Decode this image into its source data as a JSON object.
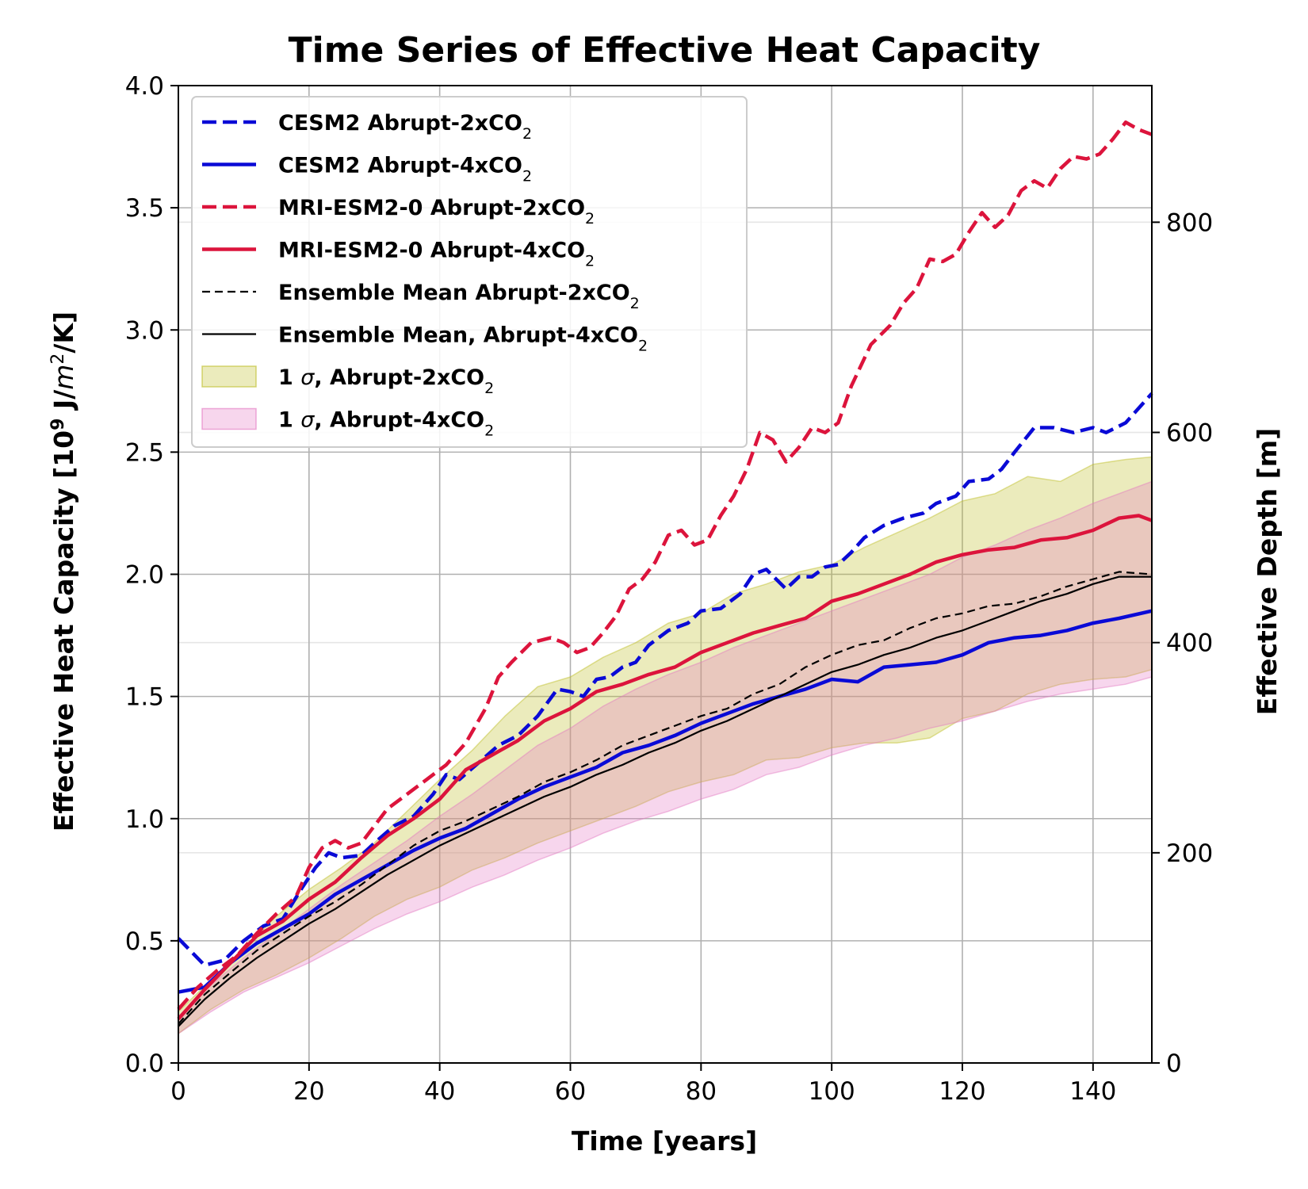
{
  "chart_data": {
    "type": "line",
    "title": "Time Series of Effective Heat Capacity",
    "xlabel": "Time [years]",
    "ylabel_prefix": "Effective Heat Capacity [10",
    "ylabel_exp": "9",
    "ylabel_mid": " J/",
    "ylabel_m": "m",
    "ylabel_exp2": "2",
    "ylabel_suffix": "/K]",
    "y2label": "Effective Depth [m]",
    "xlim": [
      0,
      149
    ],
    "ylim": [
      0,
      4
    ],
    "y2lim": [
      0,
      930
    ],
    "x_ticks": [
      0,
      20,
      40,
      60,
      80,
      100,
      120,
      140
    ],
    "x_tick_labels": [
      "0",
      "20",
      "40",
      "60",
      "80",
      "100",
      "120",
      "140"
    ],
    "y_ticks": [
      0,
      0.5,
      1,
      1.5,
      2,
      2.5,
      3,
      3.5,
      4
    ],
    "y_tick_labels": [
      "0.0",
      "0.5",
      "1.0",
      "1.5",
      "2.0",
      "2.5",
      "3.0",
      "3.5",
      "4.0"
    ],
    "y2_ticks": [
      0,
      200,
      400,
      600,
      800
    ],
    "y2_tick_labels": [
      "0",
      "200",
      "400",
      "600",
      "800"
    ],
    "grid": true,
    "legend_position": "upper-left",
    "series": [
      {
        "id": "cesm2_2x",
        "label_main": "CESM2 Abrupt-2xCO",
        "label_sub": "2",
        "color": "#0a0ad6",
        "style": "dashed",
        "width": 4.5,
        "x": [
          0,
          4,
          7,
          10,
          13,
          16,
          19,
          21,
          23,
          25,
          28,
          30,
          33,
          36,
          39,
          41,
          43,
          46,
          49,
          52,
          55,
          58,
          60,
          62,
          64,
          66,
          68,
          70,
          72,
          75,
          78,
          80,
          83,
          86,
          88,
          90,
          93,
          95,
          97,
          99,
          101,
          103,
          105,
          108,
          111,
          114,
          116,
          119,
          121,
          124,
          126,
          128,
          131,
          134,
          137,
          140,
          142,
          145,
          149
        ],
        "y": [
          0.51,
          0.4,
          0.42,
          0.5,
          0.56,
          0.59,
          0.72,
          0.8,
          0.86,
          0.84,
          0.85,
          0.9,
          0.97,
          1.01,
          1.1,
          1.18,
          1.16,
          1.23,
          1.3,
          1.34,
          1.42,
          1.53,
          1.52,
          1.5,
          1.57,
          1.58,
          1.62,
          1.64,
          1.71,
          1.77,
          1.8,
          1.85,
          1.86,
          1.92,
          2.0,
          2.02,
          1.94,
          1.99,
          1.99,
          2.03,
          2.04,
          2.09,
          2.15,
          2.2,
          2.23,
          2.25,
          2.29,
          2.32,
          2.38,
          2.39,
          2.43,
          2.5,
          2.6,
          2.6,
          2.58,
          2.6,
          2.58,
          2.62,
          2.74
        ]
      },
      {
        "id": "cesm2_4x",
        "label_main": "CESM2 Abrupt-4xCO",
        "label_sub": "2",
        "color": "#0a0ad6",
        "style": "solid",
        "width": 4.5,
        "x": [
          0,
          4,
          8,
          12,
          16,
          20,
          24,
          28,
          32,
          36,
          40,
          44,
          48,
          52,
          56,
          60,
          64,
          68,
          72,
          76,
          80,
          84,
          88,
          92,
          96,
          100,
          104,
          108,
          112,
          116,
          120,
          124,
          128,
          132,
          136,
          140,
          144,
          149
        ],
        "y": [
          0.29,
          0.31,
          0.41,
          0.49,
          0.55,
          0.61,
          0.69,
          0.75,
          0.81,
          0.87,
          0.92,
          0.96,
          1.02,
          1.08,
          1.13,
          1.17,
          1.21,
          1.27,
          1.3,
          1.34,
          1.39,
          1.43,
          1.47,
          1.5,
          1.53,
          1.57,
          1.56,
          1.62,
          1.63,
          1.64,
          1.67,
          1.72,
          1.74,
          1.75,
          1.77,
          1.8,
          1.82,
          1.85
        ]
      },
      {
        "id": "mri_2x",
        "label_main": "MRI-ESM2-0 Abrupt-2xCO",
        "label_sub": "2",
        "color": "#dc143c",
        "style": "dashed",
        "width": 4.5,
        "x": [
          0,
          3,
          6,
          9,
          12,
          15,
          18,
          20,
          22,
          24,
          26,
          28,
          30,
          32,
          35,
          38,
          41,
          44,
          47,
          49,
          51,
          54,
          57,
          59,
          61,
          63,
          65,
          67,
          69,
          71,
          73,
          75,
          77,
          79,
          81,
          83,
          85,
          87,
          89,
          91,
          93,
          95,
          97,
          99,
          101,
          103,
          106,
          109,
          111,
          113,
          115,
          117,
          119,
          121,
          123,
          125,
          127,
          129,
          131,
          133,
          135,
          137,
          139,
          141,
          143,
          145,
          147,
          149
        ],
        "y": [
          0.22,
          0.31,
          0.38,
          0.44,
          0.53,
          0.61,
          0.68,
          0.8,
          0.88,
          0.91,
          0.88,
          0.9,
          0.97,
          1.04,
          1.1,
          1.16,
          1.22,
          1.31,
          1.45,
          1.58,
          1.64,
          1.72,
          1.74,
          1.72,
          1.68,
          1.7,
          1.76,
          1.83,
          1.94,
          1.98,
          2.05,
          2.16,
          2.18,
          2.12,
          2.14,
          2.24,
          2.32,
          2.43,
          2.58,
          2.55,
          2.46,
          2.52,
          2.6,
          2.58,
          2.62,
          2.77,
          2.94,
          3.02,
          3.11,
          3.17,
          3.29,
          3.28,
          3.31,
          3.4,
          3.48,
          3.42,
          3.47,
          3.57,
          3.61,
          3.58,
          3.66,
          3.71,
          3.7,
          3.72,
          3.78,
          3.85,
          3.82,
          3.8
        ]
      },
      {
        "id": "mri_4x",
        "label_main": "MRI-ESM2-0 Abrupt-4xCO",
        "label_sub": "2",
        "color": "#dc143c",
        "style": "solid",
        "width": 4.5,
        "x": [
          0,
          4,
          8,
          12,
          16,
          20,
          24,
          28,
          32,
          36,
          40,
          44,
          48,
          52,
          56,
          60,
          64,
          68,
          72,
          76,
          80,
          84,
          88,
          92,
          96,
          100,
          104,
          108,
          112,
          116,
          120,
          124,
          128,
          132,
          136,
          140,
          144,
          147,
          149
        ],
        "y": [
          0.18,
          0.3,
          0.41,
          0.52,
          0.58,
          0.67,
          0.74,
          0.84,
          0.93,
          1.0,
          1.08,
          1.2,
          1.26,
          1.32,
          1.4,
          1.45,
          1.52,
          1.55,
          1.59,
          1.62,
          1.68,
          1.72,
          1.76,
          1.79,
          1.82,
          1.89,
          1.92,
          1.96,
          2.0,
          2.05,
          2.08,
          2.1,
          2.11,
          2.14,
          2.15,
          2.18,
          2.23,
          2.24,
          2.22
        ]
      },
      {
        "id": "ens_2x",
        "label_main": "Ensemble Mean Abrupt-2xCO",
        "label_sub": "2",
        "color": "#000000",
        "style": "dashed",
        "width": 2.2,
        "x": [
          0,
          4,
          8,
          12,
          16,
          20,
          24,
          28,
          32,
          36,
          40,
          44,
          48,
          52,
          56,
          60,
          64,
          68,
          72,
          76,
          80,
          84,
          88,
          92,
          96,
          100,
          104,
          108,
          112,
          116,
          120,
          124,
          128,
          132,
          136,
          140,
          144,
          149
        ],
        "y": [
          0.16,
          0.28,
          0.37,
          0.46,
          0.53,
          0.6,
          0.66,
          0.73,
          0.81,
          0.89,
          0.95,
          0.99,
          1.04,
          1.09,
          1.15,
          1.19,
          1.24,
          1.3,
          1.34,
          1.38,
          1.42,
          1.45,
          1.51,
          1.55,
          1.62,
          1.67,
          1.71,
          1.73,
          1.78,
          1.82,
          1.84,
          1.87,
          1.88,
          1.91,
          1.95,
          1.98,
          2.01,
          2.0
        ]
      },
      {
        "id": "ens_4x",
        "label_main": "Ensemble Mean, Abrupt-4xCO",
        "label_sub": "2",
        "color": "#000000",
        "style": "solid",
        "width": 2.2,
        "x": [
          0,
          4,
          8,
          12,
          16,
          20,
          24,
          28,
          32,
          36,
          40,
          44,
          48,
          52,
          56,
          60,
          64,
          68,
          72,
          76,
          80,
          84,
          88,
          92,
          96,
          100,
          104,
          108,
          112,
          116,
          120,
          124,
          128,
          132,
          136,
          140,
          144,
          149
        ],
        "y": [
          0.15,
          0.26,
          0.35,
          0.43,
          0.5,
          0.57,
          0.63,
          0.7,
          0.77,
          0.83,
          0.89,
          0.94,
          0.99,
          1.04,
          1.09,
          1.13,
          1.18,
          1.22,
          1.27,
          1.31,
          1.36,
          1.4,
          1.45,
          1.5,
          1.55,
          1.6,
          1.63,
          1.67,
          1.7,
          1.74,
          1.77,
          1.81,
          1.85,
          1.89,
          1.92,
          1.96,
          1.99,
          1.99
        ]
      }
    ],
    "bands": [
      {
        "id": "sigma_2x",
        "label_pre": "1 ",
        "label_sym": "σ",
        "label_main": ", Abrupt-2xCO",
        "label_sub": "2",
        "fill": "#bcbd22",
        "opacity": 0.3,
        "x": [
          0,
          5,
          10,
          15,
          20,
          25,
          30,
          35,
          40,
          45,
          50,
          55,
          60,
          65,
          70,
          75,
          80,
          85,
          90,
          95,
          100,
          105,
          110,
          115,
          120,
          125,
          130,
          135,
          140,
          145,
          149
        ],
        "lower": [
          0.12,
          0.22,
          0.3,
          0.36,
          0.43,
          0.51,
          0.6,
          0.67,
          0.72,
          0.79,
          0.84,
          0.9,
          0.95,
          1.0,
          1.05,
          1.11,
          1.15,
          1.18,
          1.24,
          1.25,
          1.29,
          1.31,
          1.31,
          1.33,
          1.41,
          1.44,
          1.51,
          1.55,
          1.57,
          1.58,
          1.61
        ],
        "upper": [
          0.21,
          0.34,
          0.47,
          0.6,
          0.71,
          0.8,
          0.9,
          1.03,
          1.16,
          1.28,
          1.42,
          1.54,
          1.58,
          1.66,
          1.72,
          1.8,
          1.84,
          1.92,
          1.96,
          2.01,
          2.04,
          2.11,
          2.17,
          2.23,
          2.3,
          2.33,
          2.4,
          2.38,
          2.45,
          2.47,
          2.48
        ]
      },
      {
        "id": "sigma_4x",
        "label_pre": "1 ",
        "label_sym": "σ",
        "label_main": ", Abrupt-4xCO",
        "label_sub": "2",
        "fill": "#e377c2",
        "opacity": 0.3,
        "x": [
          0,
          5,
          10,
          15,
          20,
          25,
          30,
          35,
          40,
          45,
          50,
          55,
          60,
          65,
          70,
          75,
          80,
          85,
          90,
          95,
          100,
          105,
          110,
          115,
          120,
          125,
          130,
          135,
          140,
          145,
          149
        ],
        "lower": [
          0.12,
          0.21,
          0.29,
          0.35,
          0.41,
          0.48,
          0.55,
          0.61,
          0.66,
          0.72,
          0.77,
          0.83,
          0.88,
          0.94,
          0.99,
          1.03,
          1.08,
          1.12,
          1.18,
          1.21,
          1.26,
          1.3,
          1.33,
          1.37,
          1.4,
          1.44,
          1.48,
          1.51,
          1.53,
          1.55,
          1.58
        ],
        "upper": [
          0.19,
          0.32,
          0.43,
          0.53,
          0.63,
          0.73,
          0.82,
          0.91,
          1.01,
          1.1,
          1.2,
          1.3,
          1.37,
          1.46,
          1.53,
          1.59,
          1.64,
          1.7,
          1.75,
          1.8,
          1.85,
          1.9,
          1.95,
          2.0,
          2.07,
          2.12,
          2.18,
          2.23,
          2.29,
          2.34,
          2.38
        ]
      }
    ]
  }
}
